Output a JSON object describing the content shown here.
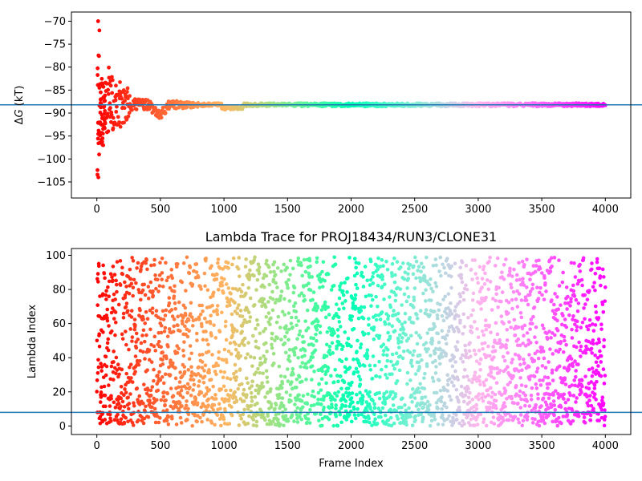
{
  "chart_data": [
    {
      "type": "scatter",
      "title": "",
      "xlabel": "",
      "ylabel_prefix": "Δ",
      "ylabel_symbol": "G",
      "ylabel_suffix": " (kT)",
      "xlim": [
        -200,
        4200
      ],
      "ylim": [
        -108.5,
        -68
      ],
      "xticks": [
        0,
        500,
        1000,
        1500,
        2000,
        2500,
        3000,
        3500,
        4000
      ],
      "yticks": [
        -105,
        -100,
        -95,
        -90,
        -85,
        -80,
        -75,
        -70
      ],
      "reference_line": -88.2,
      "reference_line_color": "#1f77b4",
      "colormap": "rainbow",
      "x_max": 4000,
      "grid": false
    },
    {
      "type": "scatter",
      "title": "Lambda Trace for PROJ18434/RUN3/CLONE31",
      "xlabel": "Frame Index",
      "ylabel": "Lambda Index",
      "xlim": [
        -200,
        4200
      ],
      "ylim": [
        -5,
        104
      ],
      "xticks": [
        0,
        500,
        1000,
        1500,
        2000,
        2500,
        3000,
        3500,
        4000
      ],
      "yticks": [
        0,
        20,
        40,
        60,
        80,
        100
      ],
      "reference_line": 8,
      "reference_line_color": "#1f77b4",
      "lambda_range": [
        0,
        99
      ],
      "colormap": "rainbow",
      "x_max": 4000,
      "grid": false
    }
  ]
}
